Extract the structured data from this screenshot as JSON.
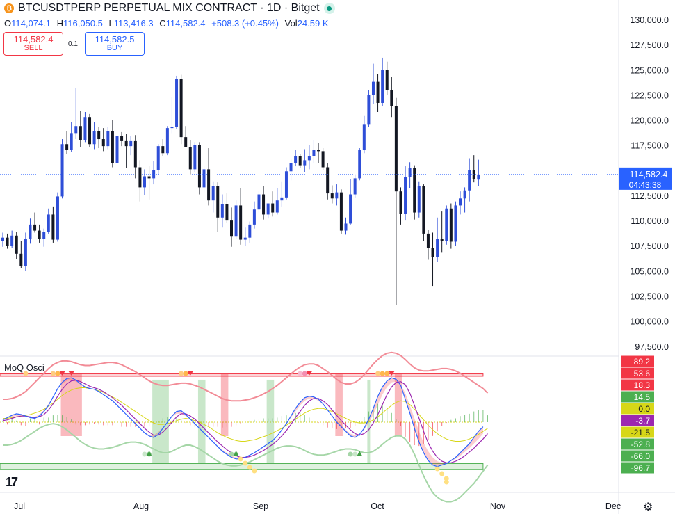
{
  "header": {
    "symbol_title": "BTCUSDTPERP PERPETUAL MIX CONTRACT · 1D · Bitget",
    "coin_icon": "bitcoin-icon",
    "ohlc": [
      {
        "key": "O",
        "value": "114,074.1"
      },
      {
        "key": "H",
        "value": "116,050.5"
      },
      {
        "key": "L",
        "value": "113,416.3"
      },
      {
        "key": "C",
        "value": "114,582.4"
      }
    ],
    "change": "+508.3 (+0.45%)",
    "vol_label": "Vol",
    "vol_value": "24.59 K"
  },
  "trade": {
    "sell_price": "114,582.4",
    "sell_label": "SELL",
    "spread": "0.1",
    "buy_price": "114,582.5",
    "buy_label": "BUY"
  },
  "indicator": {
    "name": "MoQ Osci"
  },
  "colors": {
    "up": "#2e4ed8",
    "down": "#131722",
    "last_price_bg": "#2962ff",
    "red_zone": "#f23645",
    "green_zone": "#4caf50"
  },
  "chart_data": {
    "type": "candlestick",
    "price_axis": {
      "ticks": [
        "130,000.0",
        "127,500.0",
        "125,000.0",
        "122,500.0",
        "120,000.0",
        "117,500.0",
        "115,000.0",
        "112,500.0",
        "110,000.0",
        "107,500.0",
        "105,000.0",
        "102,500.0",
        "100,000.0",
        "97,500.0"
      ],
      "range": [
        96800,
        131400
      ]
    },
    "last_price": {
      "value": "114,582.4",
      "countdown": "04:43:38",
      "price": 114582.4
    },
    "time_axis": {
      "labels": [
        "Jul",
        "Aug",
        "Sep",
        "Oct",
        "Nov",
        "Dec"
      ]
    },
    "candles": [
      [
        108000,
        108800,
        107400,
        108300
      ],
      [
        108300,
        108700,
        107200,
        107500
      ],
      [
        107500,
        109000,
        107300,
        108500
      ],
      [
        108500,
        108900,
        106200,
        106700
      ],
      [
        106700,
        108000,
        105300,
        105500
      ],
      [
        105500,
        108800,
        105000,
        108200
      ],
      [
        108200,
        110200,
        107700,
        109600
      ],
      [
        109600,
        110800,
        108800,
        109000
      ],
      [
        109000,
        109600,
        107800,
        108200
      ],
      [
        108200,
        109200,
        107400,
        108900
      ],
      [
        108900,
        111200,
        108700,
        110600
      ],
      [
        110600,
        111400,
        107800,
        108100
      ],
      [
        108100,
        112800,
        107900,
        112400
      ],
      [
        112400,
        118100,
        112200,
        117600
      ],
      [
        117600,
        118900,
        116600,
        117000
      ],
      [
        117000,
        119800,
        116800,
        118700
      ],
      [
        118700,
        123200,
        118100,
        119400
      ],
      [
        119400,
        120900,
        117300,
        118000
      ],
      [
        118000,
        120800,
        117800,
        120300
      ],
      [
        120300,
        120600,
        117300,
        117600
      ],
      [
        117600,
        119800,
        117100,
        118900
      ],
      [
        118900,
        119300,
        117200,
        118100
      ],
      [
        118100,
        119200,
        116900,
        117400
      ],
      [
        117400,
        119300,
        117100,
        118900
      ],
      [
        118900,
        120000,
        115300,
        115700
      ],
      [
        115700,
        119700,
        115400,
        118400
      ],
      [
        118400,
        118800,
        117400,
        117900
      ],
      [
        117900,
        118600,
        115200,
        117400
      ],
      [
        117400,
        118400,
        116500,
        117900
      ],
      [
        117900,
        118500,
        114200,
        115300
      ],
      [
        115300,
        116000,
        111900,
        113300
      ],
      [
        113300,
        115100,
        112500,
        114400
      ],
      [
        114400,
        115400,
        112100,
        114200
      ],
      [
        114200,
        115900,
        113600,
        115000
      ],
      [
        115000,
        117600,
        114600,
        117400
      ],
      [
        117400,
        118100,
        116400,
        116700
      ],
      [
        116700,
        119400,
        116500,
        119200
      ],
      [
        119200,
        122300,
        118700,
        119300
      ],
      [
        119300,
        124400,
        119100,
        124100
      ],
      [
        124100,
        124500,
        117600,
        118300
      ],
      [
        118300,
        119400,
        117500,
        117300
      ],
      [
        117300,
        118000,
        114600,
        115100
      ],
      [
        115100,
        117800,
        114800,
        117500
      ],
      [
        117500,
        117800,
        112600,
        113300
      ],
      [
        113300,
        115500,
        112800,
        115100
      ],
      [
        115100,
        117200,
        111500,
        112000
      ],
      [
        112000,
        113900,
        110800,
        113400
      ],
      [
        113400,
        113800,
        108900,
        110300
      ],
      [
        110300,
        112600,
        109300,
        111600
      ],
      [
        111600,
        112700,
        109800,
        110000
      ],
      [
        110000,
        111300,
        107400,
        108400
      ],
      [
        108400,
        112000,
        108200,
        111500
      ],
      [
        111500,
        113200,
        107600,
        108100
      ],
      [
        108100,
        109300,
        107500,
        108300
      ],
      [
        108300,
        109900,
        107800,
        109600
      ],
      [
        109600,
        111900,
        109200,
        111100
      ],
      [
        111100,
        113000,
        110800,
        112600
      ],
      [
        112600,
        113400,
        110100,
        110600
      ],
      [
        110600,
        111700,
        110200,
        111700
      ],
      [
        111700,
        112900,
        110400,
        110800
      ],
      [
        110800,
        113200,
        110600,
        112000
      ],
      [
        112000,
        113900,
        111400,
        112300
      ],
      [
        112300,
        115300,
        112100,
        114900
      ],
      [
        114900,
        116100,
        114000,
        115700
      ],
      [
        115700,
        117000,
        115400,
        116400
      ],
      [
        116400,
        116600,
        115200,
        115500
      ],
      [
        115500,
        117100,
        114800,
        116000
      ],
      [
        116000,
        117500,
        115100,
        116400
      ],
      [
        116400,
        118000,
        115700,
        117000
      ],
      [
        117000,
        117700,
        115700,
        116900
      ],
      [
        116900,
        117200,
        115000,
        115300
      ],
      [
        115300,
        115700,
        112100,
        112700
      ],
      [
        112700,
        113500,
        111700,
        112200
      ],
      [
        112200,
        113600,
        111500,
        112800
      ],
      [
        112800,
        113100,
        108700,
        109000
      ],
      [
        109000,
        110300,
        108600,
        109700
      ],
      [
        109700,
        114100,
        109600,
        112600
      ],
      [
        112600,
        114600,
        112300,
        114200
      ],
      [
        114200,
        117200,
        114000,
        117000
      ],
      [
        117000,
        120400,
        116700,
        119600
      ],
      [
        119600,
        123000,
        119300,
        122500
      ],
      [
        122500,
        125600,
        121600,
        123800
      ],
      [
        123800,
        124600,
        120800,
        121700
      ],
      [
        121700,
        126200,
        121400,
        125000
      ],
      [
        125000,
        125800,
        122500,
        123000
      ],
      [
        123000,
        124300,
        120300,
        121400
      ],
      [
        121400,
        122200,
        101600,
        112900
      ],
      [
        112900,
        113300,
        109600,
        110700
      ],
      [
        110700,
        115400,
        110000,
        114300
      ],
      [
        114300,
        115800,
        113200,
        115200
      ],
      [
        115200,
        115500,
        110100,
        110800
      ],
      [
        110800,
        113900,
        110300,
        113400
      ],
      [
        113400,
        113600,
        108000,
        108700
      ],
      [
        108700,
        109100,
        106100,
        107300
      ],
      [
        107300,
        108800,
        103500,
        106400
      ],
      [
        106400,
        110300,
        105900,
        108200
      ],
      [
        108200,
        110900,
        106800,
        108000
      ],
      [
        108000,
        111500,
        107600,
        111200
      ],
      [
        111200,
        111700,
        107200,
        107900
      ],
      [
        107900,
        111900,
        107500,
        111500
      ],
      [
        111500,
        112900,
        110600,
        112200
      ],
      [
        112200,
        113300,
        110800,
        113000
      ],
      [
        113000,
        116200,
        111900,
        115000
      ],
      [
        115000,
        116500,
        113800,
        114100
      ],
      [
        114074.1,
        116050.5,
        113416.3,
        114582.4
      ]
    ],
    "oscillator": {
      "levels": [
        "89.2",
        "53.6",
        "18.3",
        "14.5",
        "0.0",
        "-3.7",
        "-21.5",
        "-52.8",
        "-66.0",
        "-96.7"
      ],
      "level_values": [
        89.2,
        53.6,
        18.3,
        14.5,
        0.0,
        -3.7,
        -21.5,
        -52.8,
        -66.0,
        -96.7
      ],
      "level_colors": [
        "#f23645",
        "#f23645",
        "#f23645",
        "#4caf50",
        "#d7d718",
        "#9c27b0",
        "#d7d718",
        "#4caf50",
        "#4caf50",
        "#4caf50"
      ],
      "level_text_colors": [
        "#ffffff",
        "#ffffff",
        "#ffffff",
        "#ffffff",
        "#131722",
        "#ffffff",
        "#131722",
        "#ffffff",
        "#ffffff",
        "#ffffff"
      ],
      "range": [
        -110,
        115
      ],
      "upper_band": [
        60,
        64
      ],
      "lower_band": [
        -54,
        -62
      ],
      "fast": [
        3,
        6,
        9,
        11,
        10,
        8,
        6,
        5,
        8,
        14,
        22,
        33,
        44,
        52,
        57,
        58,
        55,
        50,
        46,
        44,
        43,
        40,
        36,
        32,
        28,
        22,
        16,
        10,
        4,
        -2,
        -8,
        -14,
        -18,
        -20,
        -16,
        -8,
        0,
        8,
        14,
        15,
        10,
        4,
        -2,
        -8,
        -14,
        -20,
        -26,
        -32,
        -38,
        -42,
        -46,
        -48,
        -48,
        -46,
        -43,
        -40,
        -36,
        -32,
        -28,
        -24,
        -18,
        -10,
        -2,
        8,
        18,
        26,
        32,
        34,
        33,
        30,
        24,
        16,
        8,
        0,
        -6,
        -12,
        -18,
        -20,
        -16,
        -8,
        4,
        18,
        34,
        46,
        54,
        58,
        56,
        48,
        30,
        12,
        -8,
        -26,
        -40,
        -50,
        -56,
        -58,
        -56,
        -54,
        -50,
        -46,
        -40,
        -34,
        -28,
        -20,
        -12,
        -6
      ],
      "signal": [
        2,
        3,
        5,
        7,
        8,
        8,
        7,
        6,
        7,
        10,
        16,
        24,
        34,
        43,
        50,
        54,
        55,
        53,
        50,
        47,
        45,
        43,
        40,
        36,
        32,
        27,
        22,
        16,
        10,
        4,
        -2,
        -8,
        -13,
        -17,
        -17,
        -13,
        -7,
        0,
        7,
        11,
        11,
        8,
        4,
        -2,
        -8,
        -14,
        -20,
        -26,
        -31,
        -36,
        -40,
        -44,
        -46,
        -46,
        -45,
        -43,
        -40,
        -37,
        -33,
        -29,
        -24,
        -18,
        -11,
        -3,
        6,
        14,
        22,
        28,
        31,
        31,
        28,
        23,
        16,
        9,
        2,
        -4,
        -10,
        -15,
        -17,
        -15,
        -10,
        -1,
        10,
        23,
        36,
        46,
        52,
        53,
        49,
        38,
        22,
        5,
        -12,
        -27,
        -38,
        -46,
        -51,
        -53,
        -53,
        -51,
        -48,
        -44,
        -39,
        -34,
        -28,
        -22,
        -15
      ],
      "slow": [
        5,
        5,
        6,
        7,
        8,
        9,
        10,
        12,
        14,
        17,
        21,
        25,
        30,
        35,
        39,
        42,
        44,
        45,
        45,
        44,
        43,
        41,
        39,
        36,
        33,
        30,
        26,
        22,
        18,
        14,
        10,
        6,
        2,
        -1,
        -3,
        -3,
        -2,
        0,
        2,
        4,
        5,
        4,
        2,
        0,
        -3,
        -6,
        -10,
        -14,
        -17,
        -20,
        -22,
        -24,
        -25,
        -25,
        -24,
        -23,
        -21,
        -19,
        -17,
        -14,
        -11,
        -8,
        -4,
        0,
        4,
        8,
        12,
        15,
        17,
        18,
        18,
        16,
        14,
        11,
        8,
        5,
        2,
        0,
        -1,
        -1,
        0,
        3,
        7,
        12,
        17,
        22,
        26,
        28,
        27,
        23,
        17,
        10,
        3,
        -4,
        -10,
        -15,
        -19,
        -22,
        -24,
        -25,
        -25,
        -24,
        -22,
        -19,
        -16,
        -12,
        -8
      ],
      "env_upper": [
        30,
        30,
        31,
        33,
        36,
        40,
        46,
        52,
        58,
        64,
        70,
        75,
        78,
        80,
        80,
        79,
        77,
        75,
        74,
        74,
        75,
        76,
        77,
        78,
        78,
        77,
        75,
        72,
        69,
        66,
        62,
        58,
        54,
        51,
        49,
        48,
        48,
        49,
        50,
        51,
        51,
        50,
        48,
        46,
        43,
        40,
        37,
        34,
        31,
        29,
        28,
        28,
        28,
        29,
        30,
        32,
        34,
        37,
        40,
        44,
        48,
        53,
        58,
        63,
        68,
        72,
        75,
        76,
        76,
        74,
        70,
        66,
        61,
        56,
        52,
        50,
        50,
        52,
        56,
        62,
        69,
        76,
        82,
        87,
        90,
        91,
        90,
        87,
        82,
        76,
        71,
        68,
        67,
        67,
        68,
        69,
        70,
        70,
        69,
        67,
        64,
        60,
        56,
        52,
        48,
        44,
        38
      ],
      "env_lower": [
        -30,
        -30,
        -29,
        -27,
        -24,
        -20,
        -16,
        -12,
        -8,
        -5,
        -3,
        -2,
        -3,
        -6,
        -10,
        -15,
        -20,
        -25,
        -29,
        -32,
        -34,
        -35,
        -35,
        -34,
        -33,
        -31,
        -29,
        -27,
        -26,
        -26,
        -27,
        -29,
        -32,
        -35,
        -38,
        -40,
        -40,
        -38,
        -35,
        -32,
        -30,
        -30,
        -32,
        -35,
        -39,
        -43,
        -47,
        -51,
        -54,
        -56,
        -57,
        -57,
        -56,
        -54,
        -52,
        -49,
        -46,
        -43,
        -40,
        -37,
        -34,
        -32,
        -31,
        -31,
        -32,
        -34,
        -37,
        -40,
        -42,
        -43,
        -43,
        -42,
        -40,
        -38,
        -36,
        -35,
        -35,
        -36,
        -38,
        -40,
        -40,
        -38,
        -34,
        -29,
        -24,
        -20,
        -18,
        -18,
        -22,
        -30,
        -42,
        -56,
        -70,
        -82,
        -92,
        -98,
        -102,
        -104,
        -104,
        -102,
        -98,
        -92,
        -86,
        -80,
        -72,
        -64,
        -56
      ],
      "histogram": [
        2,
        -3,
        4,
        2,
        -4,
        -5,
        5,
        4,
        -3,
        6,
        6,
        9,
        10,
        9,
        7,
        4,
        -3,
        -4,
        -4,
        -3,
        -2,
        -3,
        -4,
        -4,
        -4,
        -5,
        -6,
        -6,
        -6,
        -6,
        -6,
        -6,
        -5,
        -3,
        1,
        5,
        7,
        8,
        7,
        4,
        -1,
        -4,
        -6,
        -6,
        -6,
        -6,
        -6,
        -6,
        -7,
        -6,
        -6,
        -4,
        -2,
        0,
        2,
        3,
        4,
        5,
        5,
        5,
        6,
        8,
        9,
        11,
        12,
        12,
        10,
        6,
        2,
        -1,
        -4,
        -7,
        -8,
        -9,
        -8,
        -8,
        -8,
        -5,
        1,
        7,
        14,
        19,
        24,
        23,
        18,
        12,
        4,
        -5,
        -19,
        -26,
        -30,
        -31,
        -28,
        -23,
        -18,
        -12,
        -5,
        -1,
        3,
        5,
        8,
        10,
        11,
        14,
        16,
        16,
        9
      ],
      "red_zones": [
        [
          13,
          17
        ],
        [
          48,
          49
        ],
        [
          73,
          74
        ],
        [
          86,
          87
        ]
      ],
      "green_zones": [
        [
          33,
          36
        ],
        [
          43,
          44
        ],
        [
          58,
          59
        ],
        [
          80,
          80
        ]
      ]
    }
  }
}
